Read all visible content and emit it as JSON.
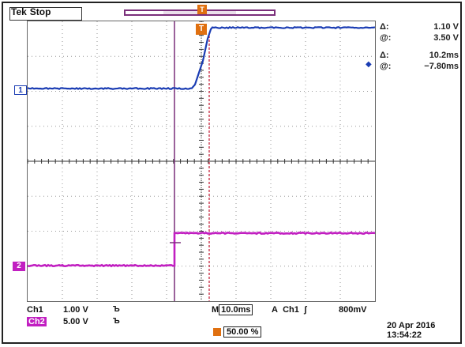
{
  "header": {
    "brand": "Tek",
    "state": "Stop"
  },
  "markers": {
    "trigger_top": "T",
    "trigger_screen": "T",
    "ch1": "1",
    "ch2": "2"
  },
  "readout": {
    "dv_symbol": "Δ:",
    "dv_value": "1.10 V",
    "av_symbol": "@:",
    "av_value": "3.50 V",
    "dt_symbol": "Δ:",
    "dt_value": "10.2ms",
    "at_symbol": "@:",
    "at_value": "−7.80ms"
  },
  "bottom": {
    "ch1_label": "Ch1",
    "ch1_scale": "1.00 V",
    "ch1_bw": "Ъ",
    "ch2_label": "Ch2",
    "ch2_scale": "5.00 V",
    "ch2_bw": "Ъ",
    "timebase_prefix": "M",
    "timebase": "10.0ms",
    "trigger_mode": "A",
    "trigger_source": "Ch1",
    "trigger_slope": "ʃ",
    "trigger_level": "800mV",
    "trigger_position": "50.00 %",
    "date": "20 Apr  2016",
    "time": "13:54:22"
  },
  "colors": {
    "ch1": "#1a3cb3",
    "ch2": "#c11fc1",
    "cursor_v": "#7a2f7a",
    "cursor_t": "#c0152f",
    "trigger": "#e07010"
  }
}
